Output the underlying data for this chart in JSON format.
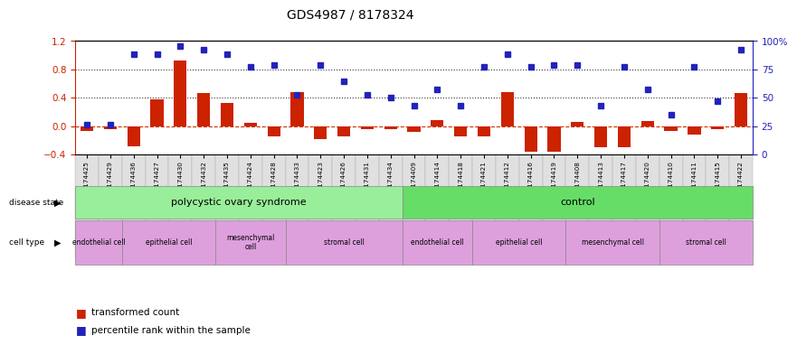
{
  "title": "GDS4987 / 8178324",
  "samples": [
    "GSM1174425",
    "GSM1174429",
    "GSM1174436",
    "GSM1174427",
    "GSM1174430",
    "GSM1174432",
    "GSM1174435",
    "GSM1174424",
    "GSM1174428",
    "GSM1174433",
    "GSM1174423",
    "GSM1174426",
    "GSM1174431",
    "GSM1174434",
    "GSM1174409",
    "GSM1174414",
    "GSM1174418",
    "GSM1174421",
    "GSM1174412",
    "GSM1174416",
    "GSM1174419",
    "GSM1174408",
    "GSM1174413",
    "GSM1174417",
    "GSM1174420",
    "GSM1174410",
    "GSM1174411",
    "GSM1174415",
    "GSM1174422"
  ],
  "red_values": [
    -0.07,
    -0.05,
    -0.28,
    0.37,
    0.92,
    0.47,
    0.33,
    0.05,
    -0.14,
    0.48,
    -0.18,
    -0.15,
    -0.05,
    -0.05,
    -0.08,
    0.08,
    -0.14,
    -0.14,
    0.48,
    -0.36,
    -0.36,
    0.06,
    -0.3,
    -0.3,
    0.07,
    -0.07,
    -0.12,
    -0.05,
    0.47
  ],
  "blue_values_left": [
    0.02,
    0.02,
    1.01,
    1.01,
    1.12,
    1.07,
    1.01,
    0.84,
    0.86,
    0.44,
    0.86,
    0.63,
    0.44,
    0.4,
    0.29,
    0.51,
    0.29,
    0.84,
    1.01,
    0.84,
    0.86,
    0.86,
    0.29,
    0.84,
    0.51,
    0.16,
    0.84,
    0.35,
    1.08
  ],
  "disease_state_groups": [
    {
      "label": "polycystic ovary syndrome",
      "start": 0,
      "end": 14,
      "color": "#99EE99"
    },
    {
      "label": "control",
      "start": 14,
      "end": 29,
      "color": "#66DD66"
    }
  ],
  "cell_type_groups": [
    {
      "label": "endothelial cell",
      "start": 0,
      "end": 2,
      "color": "#DDA0DD"
    },
    {
      "label": "epithelial cell",
      "start": 2,
      "end": 6,
      "color": "#DDA0DD"
    },
    {
      "label": "mesenchymal\ncell",
      "start": 6,
      "end": 9,
      "color": "#DDA0DD"
    },
    {
      "label": "stromal cell",
      "start": 9,
      "end": 14,
      "color": "#DDA0DD"
    },
    {
      "label": "endothelial cell",
      "start": 14,
      "end": 17,
      "color": "#DDA0DD"
    },
    {
      "label": "epithelial cell",
      "start": 17,
      "end": 21,
      "color": "#DDA0DD"
    },
    {
      "label": "mesenchymal cell",
      "start": 21,
      "end": 25,
      "color": "#DDA0DD"
    },
    {
      "label": "stromal cell",
      "start": 25,
      "end": 29,
      "color": "#DDA0DD"
    }
  ],
  "ylim_left": [
    -0.4,
    1.2
  ],
  "ylim_right": [
    0,
    100
  ],
  "yticks_left": [
    -0.4,
    0.0,
    0.4,
    0.8,
    1.2
  ],
  "yticks_right": [
    0,
    25,
    50,
    75,
    100
  ],
  "bar_color": "#CC2200",
  "dot_color": "#2222BB",
  "zero_line_color": "#CC3300",
  "dotted_line_color": "#333333"
}
